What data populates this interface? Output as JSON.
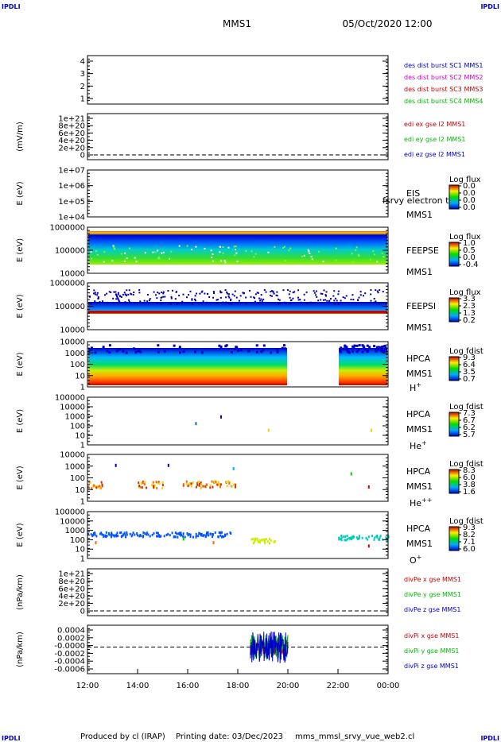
{
  "header": {
    "corner_tl": "IPDLI",
    "corner_tr": "IPDLI",
    "corner_bl": "IPDLI",
    "corner_br": "IPDLI",
    "title": "MMS1",
    "date": "05/Oct/2020 12:00"
  },
  "footer": {
    "produced_by": "Produced by cl (IRAP)",
    "printing_date": "Printing date: 03/Dec/2023",
    "script": "mms_mmsl_srvy_vue_web2.cl"
  },
  "x_axis": {
    "start": "12:00",
    "end": "00:00",
    "ticks": [
      "12:00",
      "14:00",
      "16:00",
      "18:00",
      "20:00",
      "22:00",
      "00:00"
    ],
    "tick_hours": [
      0,
      2,
      4,
      6,
      8,
      10,
      12
    ]
  },
  "chart_data": [
    {
      "id": "des_burst",
      "type": "line",
      "ylabel": "",
      "yticks": [
        "1",
        "2",
        "3",
        "4"
      ],
      "ylim": [
        0.6,
        4.3
      ],
      "legend": [
        {
          "text": "des dist burst SC1 MMS1",
          "color": "#0000cc"
        },
        {
          "text": "des dist burst SC2 MMS2",
          "color": "#cc00cc"
        },
        {
          "text": "des dist burst SC3 MMS3",
          "color": "#cc0000"
        },
        {
          "text": "des dist burst SC4 MMS4",
          "color": "#00bb00"
        }
      ],
      "series": []
    },
    {
      "id": "edi_e",
      "type": "line",
      "ylabel": "(mV/m)",
      "yticks": [
        "0",
        "2e+20",
        "4e+20",
        "6e+20",
        "8e+20",
        "1e+21"
      ],
      "ylim": [
        0,
        1e+21
      ],
      "zero_line": true,
      "legend": [
        {
          "text": "edi ex gse l2 MMS1",
          "color": "#cc0000"
        },
        {
          "text": "edi ey gse l2 MMS1",
          "color": "#00bb00"
        },
        {
          "text": "edi ez gse l2 MMS1",
          "color": "#0000cc"
        }
      ],
      "series": []
    },
    {
      "id": "eis",
      "type": "heatmap",
      "ylabel": "E (eV)",
      "yticks": [
        "1e+04",
        "1e+05",
        "1e+06",
        "1e+07"
      ],
      "log_scale": true,
      "side_labels": [
        "EIS",
        "MMS1"
      ],
      "overlay_text": "fsrvy electron to",
      "colorbar": {
        "title": "Log flux",
        "ticks": [
          "0.0",
          "0.0",
          "0.0",
          "0.0"
        ]
      },
      "data": []
    },
    {
      "id": "feepse",
      "type": "heatmap",
      "ylabel": "E (eV)",
      "yticks": [
        "10000",
        "100000",
        "1000000"
      ],
      "log_scale": true,
      "side_labels": [
        "FEEPSE",
        "MMS1"
      ],
      "colorbar": {
        "title": "Log flux",
        "ticks": [
          "1.0",
          "0.5",
          "0.0",
          "-0.4"
        ]
      },
      "energy_range_ev": [
        40000,
        800000
      ],
      "time_range_h": [
        0,
        12
      ]
    },
    {
      "id": "feepsi",
      "type": "heatmap",
      "ylabel": "E (eV)",
      "yticks": [
        "10000",
        "100000",
        "1000000"
      ],
      "log_scale": true,
      "side_labels": [
        "FEEPSI",
        "MMS1"
      ],
      "colorbar": {
        "title": "Log flux",
        "ticks": [
          "3.3",
          "2.3",
          "1.3",
          "0.2"
        ]
      },
      "energy_range_ev": [
        55000,
        500000
      ],
      "time_range_h": [
        0,
        12
      ]
    },
    {
      "id": "hpca_h",
      "type": "heatmap",
      "ylabel": "E (eV)",
      "yticks": [
        "1",
        "10",
        "100",
        "1000",
        "10000"
      ],
      "log_scale": true,
      "side_labels": [
        "HPCA",
        "MMS1"
      ],
      "species": "H",
      "species_sup": "+",
      "colorbar": {
        "title": "Log fdist",
        "ticks": [
          "9.3",
          "6.4",
          "3.5",
          "0.7"
        ]
      },
      "coverage_h": [
        [
          0,
          8
        ],
        [
          10,
          12
        ]
      ]
    },
    {
      "id": "hpca_he1",
      "type": "heatmap",
      "ylabel": "E (eV)",
      "yticks": [
        "1",
        "10",
        "100",
        "1000",
        "10000",
        "100000"
      ],
      "log_scale": true,
      "side_labels": [
        "HPCA",
        "MMS1"
      ],
      "species": "He",
      "species_sup": "+",
      "colorbar": {
        "title": "Log fdist",
        "ticks": [
          "7.3",
          "6.7",
          "6.2",
          "5.7"
        ]
      }
    },
    {
      "id": "hpca_he2",
      "type": "heatmap",
      "ylabel": "E (eV)",
      "yticks": [
        "1",
        "10",
        "100",
        "1000",
        "10000"
      ],
      "log_scale": true,
      "side_labels": [
        "HPCA",
        "MMS1"
      ],
      "species": "He",
      "species_sup": "++",
      "colorbar": {
        "title": "Log fdist",
        "ticks": [
          "8.3",
          "6.0",
          "3.8",
          "1.6"
        ]
      }
    },
    {
      "id": "hpca_o",
      "type": "heatmap",
      "ylabel": "E (eV)",
      "yticks": [
        "1",
        "10",
        "100",
        "1000",
        "10000",
        "100000"
      ],
      "log_scale": true,
      "side_labels": [
        "HPCA",
        "MMS1"
      ],
      "species": "O",
      "species_sup": "+",
      "colorbar": {
        "title": "Log fdist",
        "ticks": [
          "9.3",
          "8.2",
          "7.1",
          "6.0"
        ]
      }
    },
    {
      "id": "divpe",
      "type": "line",
      "ylabel": "(nPa/km)",
      "yticks": [
        "0",
        "2e+20",
        "4e+20",
        "6e+20",
        "8e+20",
        "1e+21"
      ],
      "ylim": [
        0,
        1e+21
      ],
      "zero_line": true,
      "legend": [
        {
          "text": "divPe x gse MMS1",
          "color": "#cc0000"
        },
        {
          "text": "divPe y gse MMS1",
          "color": "#00bb00"
        },
        {
          "text": "divPe z gse MMS1",
          "color": "#0000cc"
        }
      ],
      "series": []
    },
    {
      "id": "divpi",
      "type": "line",
      "ylabel": "(nPa/km)",
      "yticks": [
        "-0.0006",
        "-0.0004",
        "-0.0002",
        "-0.0000",
        "0.0002",
        "0.0004"
      ],
      "ylim": [
        -0.0007,
        0.0005
      ],
      "zero_line": true,
      "legend": [
        {
          "text": "divPi x gse MMS1",
          "color": "#cc0000"
        },
        {
          "text": "divPi y gse MMS1",
          "color": "#00bb00"
        },
        {
          "text": "divPi z gse MMS1",
          "color": "#0000cc"
        }
      ],
      "active_range_h": [
        6.5,
        8.0
      ],
      "series": [
        {
          "name": "divPi x gse MMS1",
          "color": "#cc0000",
          "amplitude": 0.0002
        },
        {
          "name": "divPi y gse MMS1",
          "color": "#00bb00",
          "amplitude": 0.0003
        },
        {
          "name": "divPi z gse MMS1",
          "color": "#0000cc",
          "amplitude": 0.0004
        }
      ]
    }
  ]
}
